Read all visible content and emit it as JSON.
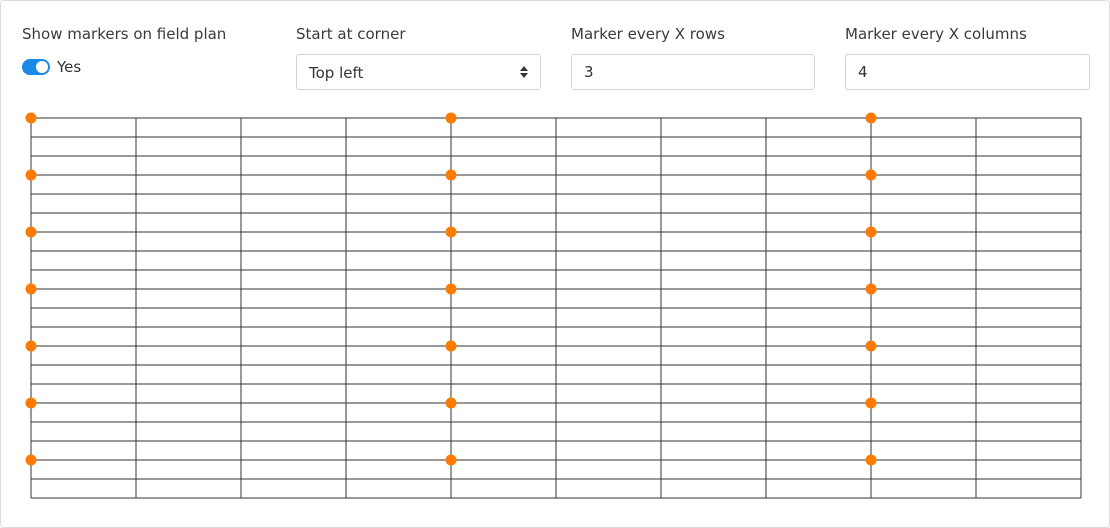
{
  "settings": {
    "show_markers": {
      "label": "Show markers on field plan",
      "value_text": "Yes",
      "enabled": true
    },
    "start_corner": {
      "label": "Start at corner",
      "selected": "Top left"
    },
    "rows_interval": {
      "label": "Marker every X rows",
      "value": "3"
    },
    "columns_interval": {
      "label": "Marker every X columns",
      "value": "4"
    }
  },
  "field_plan": {
    "rows": 20,
    "columns": 10,
    "marker_every_rows": 3,
    "marker_every_columns": 4,
    "start_corner": "top-left",
    "grid_color": "#333333",
    "marker_color": "#ff7a00"
  }
}
